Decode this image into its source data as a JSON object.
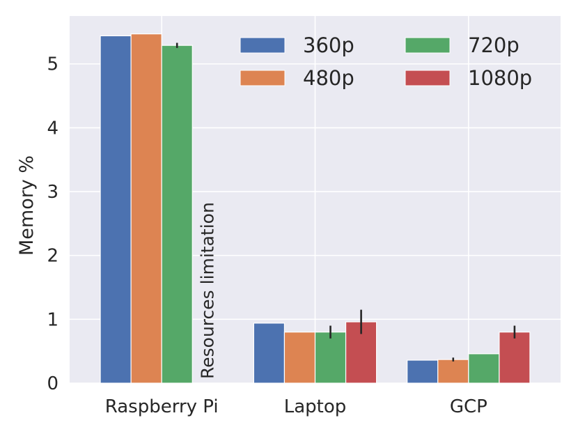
{
  "chart_data": {
    "type": "bar",
    "title": "",
    "xlabel": "",
    "ylabel": "Memory %",
    "ylim": [
      0,
      5.75
    ],
    "yticks": [
      0,
      1,
      2,
      3,
      4,
      5
    ],
    "grid": true,
    "legend_position": "top-right",
    "categories": [
      "Raspberry Pi",
      "Laptop",
      "GCP"
    ],
    "series": [
      {
        "name": "360p",
        "color": "#4c72b0",
        "values": [
          5.44,
          0.94,
          0.36
        ],
        "errors": [
          0,
          0,
          0
        ]
      },
      {
        "name": "480p",
        "color": "#dd8452",
        "values": [
          5.47,
          0.8,
          0.37
        ],
        "errors": [
          0,
          0,
          0.03
        ]
      },
      {
        "name": "720p",
        "color": "#55a868",
        "values": [
          5.29,
          0.8,
          0.46
        ],
        "errors": [
          0.04,
          0.1,
          0
        ]
      },
      {
        "name": "1080p",
        "color": "#c44e52",
        "values": [
          null,
          0.96,
          0.8
        ],
        "errors": [
          0,
          0.19,
          0.1
        ]
      }
    ],
    "annotations": [
      {
        "text": "Resources limitation",
        "category": "Raspberry Pi",
        "series": "1080p",
        "orientation": "vertical"
      }
    ]
  },
  "colors": {
    "plot_background": "#eaeaf2",
    "grid": "#ffffff",
    "text": "#262626",
    "error_bar": "#262626"
  }
}
